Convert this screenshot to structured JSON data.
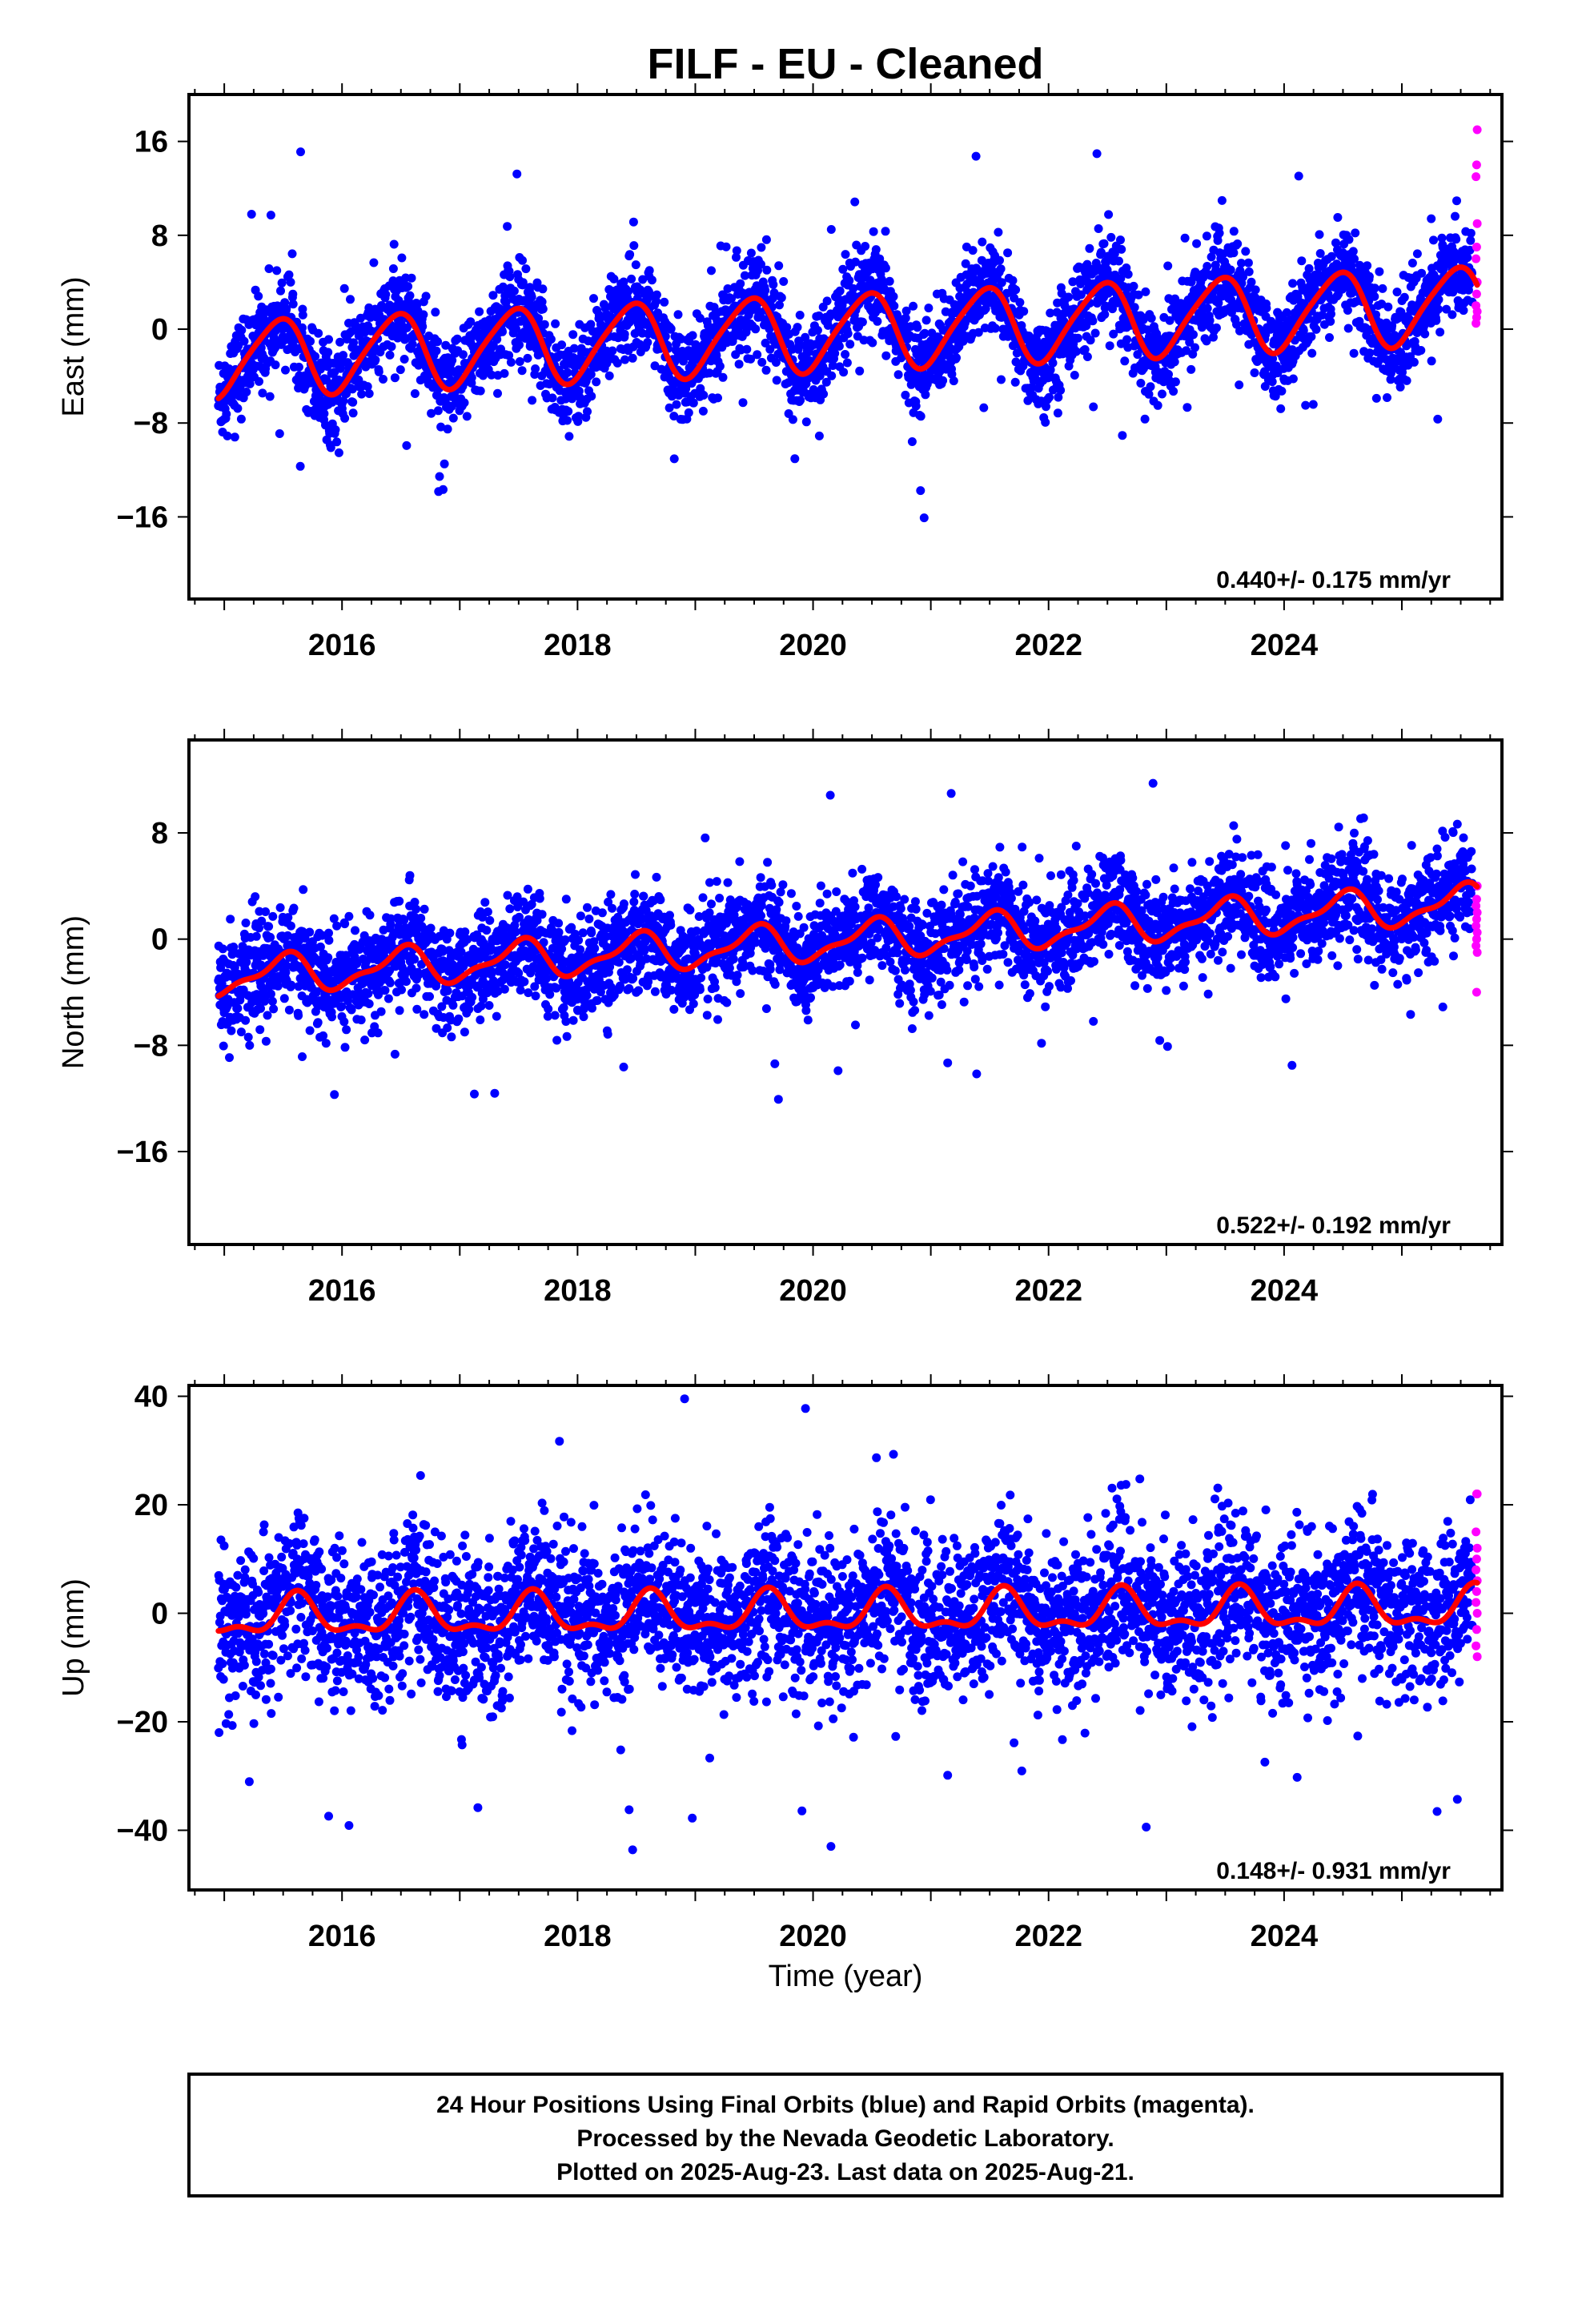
{
  "chart_data": {
    "type": "scatter",
    "title": "FILF  - EU - Cleaned",
    "xlabel": "Time (year)",
    "x_ticks": [
      2016,
      2018,
      2020,
      2022,
      2024
    ],
    "xlim": [
      2014.7,
      2025.85
    ],
    "data_range": [
      2014.95,
      2025.64
    ],
    "colors": {
      "final": "#0000ff",
      "rapid": "#ff00ff",
      "fit": "#ff0000"
    },
    "panels": [
      {
        "ylabel": "East (mm)",
        "ylim": [
          -23,
          20
        ],
        "y_ticks": [
          16,
          8,
          0,
          -8,
          -16
        ],
        "rate": "0.440+/- 0.175 mm/yr",
        "rate_mm_per_yr": 0.44,
        "offset_mm": -0.2,
        "annual_amplitude_mm": 3.2,
        "annual_peak_fraction": 0.45,
        "scatter_sd_mm": 2.0,
        "rapid_values": [
          17,
          14,
          13,
          9,
          7,
          6,
          4,
          3,
          2,
          1.5,
          1,
          0.5
        ]
      },
      {
        "ylabel": "North (mm)",
        "ylim": [
          -23,
          15
        ],
        "y_ticks": [
          8,
          0,
          -8,
          -16
        ],
        "rate": "0.522+/- 0.192 mm/yr",
        "rate_mm_per_yr": 0.522,
        "offset_mm": -0.1,
        "annual_amplitude_mm": 1.3,
        "annual_peak_fraction": 0.5,
        "scatter_sd_mm": 1.9,
        "rapid_values": [
          4,
          3,
          2.5,
          2,
          1.5,
          1,
          0.5,
          0,
          -0.5,
          -1,
          -4
        ]
      },
      {
        "ylabel": "Up (mm)",
        "ylim": [
          -51,
          42
        ],
        "y_ticks": [
          40,
          20,
          0,
          -20,
          -40
        ],
        "rate": "0.148+/- 0.931 mm/yr",
        "rate_mm_per_yr": 0.148,
        "offset_mm": 0.0,
        "annual_amplitude_mm": 3.3,
        "annual_peak_fraction": 0.62,
        "scatter_sd_mm": 7.0,
        "rapid_values": [
          22,
          22,
          15,
          12,
          10,
          8,
          6,
          4,
          2,
          0,
          -3,
          -6,
          -8
        ]
      }
    ]
  },
  "footer": {
    "line1": "24 Hour Positions Using Final Orbits (blue) and Rapid Orbits (magenta).",
    "line2": "Processed by the Nevada Geodetic Laboratory.",
    "line3": "Plotted on 2025-Aug-23. Last data on 2025-Aug-21."
  }
}
